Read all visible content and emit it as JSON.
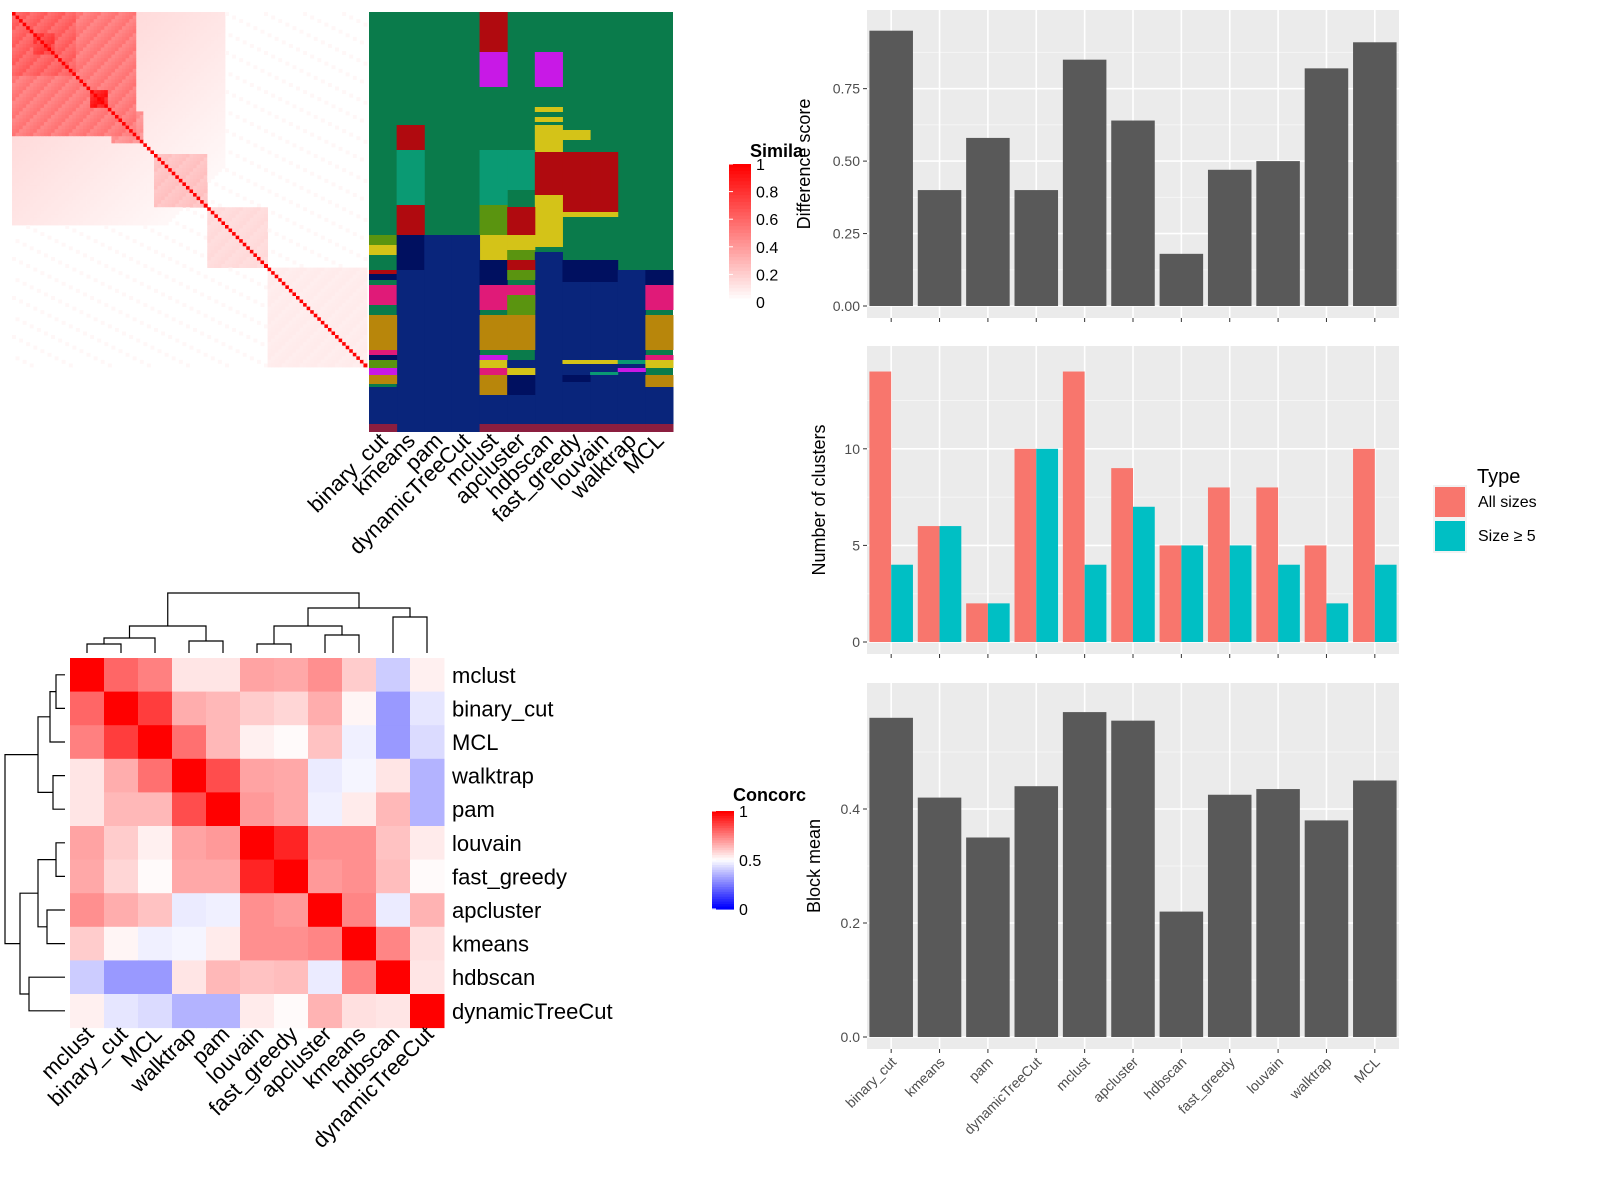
{
  "similarity_legend": {
    "title": "Simila",
    "ticks": [
      "1",
      "0.8",
      "0.6",
      "0.4",
      "0.2",
      "0"
    ]
  },
  "concordance_legend": {
    "title": "Concorc",
    "ticks": [
      "1",
      "0.5",
      "0"
    ]
  },
  "type_legend": {
    "title": "Type",
    "items": [
      "All sizes",
      "Size ≥ 5"
    ],
    "colors": [
      "#F8766D",
      "#00BFC4"
    ]
  },
  "chart_data": [
    {
      "type": "heatmap",
      "description_free": true,
      "columns": [
        "binary_cut",
        "kmeans",
        "pam",
        "dynamicTreeCut",
        "mclust",
        "apcluster",
        "hdbscan",
        "fast_greedy",
        "louvain",
        "walktrap",
        "MCL"
      ],
      "color_scale": {
        "min": 0,
        "max": 1,
        "low": "#ffffff",
        "high": "#ff0000"
      }
    },
    {
      "type": "heatmap",
      "row_labels": [
        "mclust",
        "binary_cut",
        "MCL",
        "walktrap",
        "pam",
        "louvain",
        "fast_greedy",
        "apcluster",
        "kmeans",
        "hdbscan",
        "dynamicTreeCut"
      ],
      "col_labels": [
        "mclust",
        "binary_cut",
        "MCL",
        "walktrap",
        "pam",
        "louvain",
        "fast_greedy",
        "apcluster",
        "kmeans",
        "hdbscan",
        "dynamicTreeCut"
      ],
      "color_scale": {
        "min": 0,
        "mid": 0.5,
        "max": 1,
        "low": "#0000ff",
        "midcolor": "#ffffff",
        "high": "#ff0000"
      },
      "values": [
        [
          1.0,
          0.8,
          0.75,
          0.55,
          0.55,
          0.68,
          0.67,
          0.72,
          0.6,
          0.4,
          0.53
        ],
        [
          0.8,
          1.0,
          0.88,
          0.66,
          0.64,
          0.6,
          0.58,
          0.66,
          0.52,
          0.3,
          0.45
        ],
        [
          0.75,
          0.88,
          1.0,
          0.78,
          0.64,
          0.53,
          0.51,
          0.62,
          0.47,
          0.3,
          0.43
        ],
        [
          0.55,
          0.66,
          0.78,
          1.0,
          0.85,
          0.68,
          0.67,
          0.46,
          0.48,
          0.55,
          0.35
        ],
        [
          0.55,
          0.64,
          0.64,
          0.85,
          1.0,
          0.7,
          0.67,
          0.47,
          0.54,
          0.64,
          0.35
        ],
        [
          0.68,
          0.6,
          0.53,
          0.68,
          0.7,
          1.0,
          0.93,
          0.72,
          0.72,
          0.62,
          0.54
        ],
        [
          0.67,
          0.58,
          0.51,
          0.67,
          0.67,
          0.93,
          1.0,
          0.7,
          0.72,
          0.63,
          0.51
        ],
        [
          0.72,
          0.66,
          0.62,
          0.46,
          0.47,
          0.72,
          0.7,
          1.0,
          0.74,
          0.46,
          0.65
        ],
        [
          0.6,
          0.52,
          0.47,
          0.48,
          0.54,
          0.72,
          0.72,
          0.74,
          1.0,
          0.74,
          0.56
        ],
        [
          0.4,
          0.3,
          0.3,
          0.55,
          0.64,
          0.62,
          0.63,
          0.46,
          0.74,
          1.0,
          0.55
        ],
        [
          0.53,
          0.45,
          0.43,
          0.35,
          0.35,
          0.54,
          0.51,
          0.65,
          0.56,
          0.55,
          1.0
        ]
      ]
    },
    {
      "type": "bar",
      "categories": [
        "binary_cut",
        "kmeans",
        "pam",
        "dynamicTreeCut",
        "mclust",
        "apcluster",
        "hdbscan",
        "fast_greedy",
        "louvain",
        "walktrap",
        "MCL"
      ],
      "values": [
        0.95,
        0.4,
        0.58,
        0.4,
        0.85,
        0.64,
        0.18,
        0.47,
        0.5,
        0.82,
        0.91
      ],
      "ylabel": "Difference score",
      "ylim": [
        0,
        0.98
      ],
      "yticks": [
        "0.00",
        "0.25",
        "0.50",
        "0.75"
      ],
      "grid": true
    },
    {
      "type": "bar",
      "categories": [
        "binary_cut",
        "kmeans",
        "pam",
        "dynamicTreeCut",
        "mclust",
        "apcluster",
        "hdbscan",
        "fast_greedy",
        "louvain",
        "walktrap",
        "MCL"
      ],
      "series": [
        {
          "name": "All sizes",
          "values": [
            14,
            6,
            2,
            10,
            14,
            9,
            5,
            8,
            8,
            5,
            10
          ]
        },
        {
          "name": "Size ≥ 5",
          "values": [
            4,
            6,
            2,
            10,
            4,
            7,
            5,
            5,
            4,
            2,
            4
          ]
        }
      ],
      "ylabel": "Number of clusters",
      "ylim": [
        0,
        14.7
      ],
      "yticks": [
        "0",
        "5",
        "10"
      ],
      "legend": "right",
      "grid": true
    },
    {
      "type": "bar",
      "categories": [
        "binary_cut",
        "kmeans",
        "pam",
        "dynamicTreeCut",
        "mclust",
        "apcluster",
        "hdbscan",
        "fast_greedy",
        "louvain",
        "walktrap",
        "MCL"
      ],
      "values": [
        0.56,
        0.42,
        0.35,
        0.44,
        0.57,
        0.555,
        0.22,
        0.425,
        0.435,
        0.38,
        0.45
      ],
      "ylabel": "Block mean",
      "xlabels_rotated": true,
      "ylim": [
        0,
        0.6
      ],
      "yticks": [
        "0.0",
        "0.2",
        "0.4"
      ],
      "grid": true
    }
  ]
}
